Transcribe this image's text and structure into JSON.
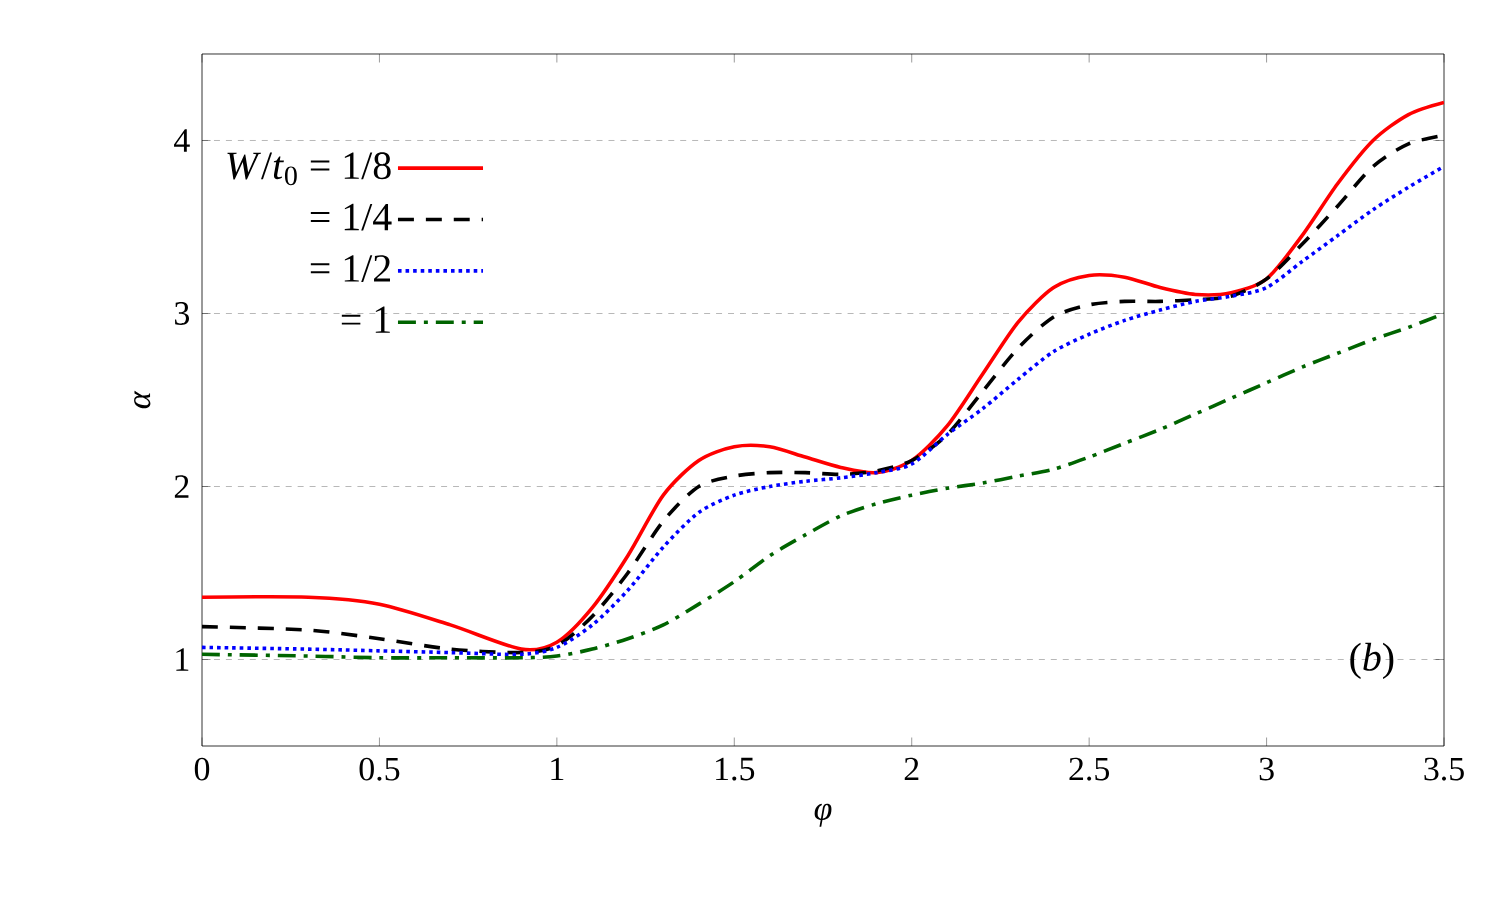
{
  "chart_data": {
    "type": "line",
    "xlabel": "*φ*",
    "ylabel": "*α*",
    "xlim": [
      0,
      3.5
    ],
    "ylim": [
      0.5,
      4.5
    ],
    "xticks": [
      0,
      0.5,
      1,
      1.5,
      2,
      2.5,
      3,
      3.5
    ],
    "yticks": [
      1,
      2,
      3,
      4
    ],
    "grid": "y",
    "legend": "top left",
    "annotations": [
      "(*b*)"
    ],
    "x": [
      0,
      0.3,
      0.5,
      0.7,
      0.9,
      1.0,
      1.1,
      1.2,
      1.3,
      1.4,
      1.5,
      1.6,
      1.7,
      1.8,
      1.9,
      2.0,
      2.1,
      2.2,
      2.3,
      2.4,
      2.5,
      2.6,
      2.7,
      2.8,
      2.9,
      3.0,
      3.1,
      3.2,
      3.3,
      3.4,
      3.5
    ],
    "series": [
      {
        "name": "*W*/*t*$_{0}$ = 1/8",
        "color": "#ff0000",
        "line_style": "solid",
        "values": [
          1.36,
          1.36,
          1.32,
          1.2,
          1.06,
          1.1,
          1.3,
          1.6,
          1.95,
          2.15,
          2.23,
          2.23,
          2.17,
          2.11,
          2.08,
          2.15,
          2.35,
          2.65,
          2.95,
          3.15,
          3.22,
          3.21,
          3.15,
          3.11,
          3.12,
          3.2,
          3.45,
          3.75,
          4.0,
          4.15,
          4.22
        ]
      },
      {
        "name": "= 1/4",
        "color": "#000000",
        "line_style": "dashed",
        "values": [
          1.19,
          1.17,
          1.12,
          1.06,
          1.04,
          1.08,
          1.25,
          1.5,
          1.8,
          2.0,
          2.06,
          2.08,
          2.08,
          2.07,
          2.09,
          2.15,
          2.3,
          2.55,
          2.8,
          2.98,
          3.05,
          3.07,
          3.07,
          3.08,
          3.1,
          3.2,
          3.4,
          3.62,
          3.85,
          3.98,
          4.03
        ]
      },
      {
        "name": "= 1/2",
        "color": "#0000ff",
        "line_style": "dotted",
        "values": [
          1.07,
          1.06,
          1.05,
          1.04,
          1.03,
          1.07,
          1.2,
          1.4,
          1.65,
          1.85,
          1.95,
          2.0,
          2.03,
          2.05,
          2.08,
          2.13,
          2.3,
          2.45,
          2.62,
          2.78,
          2.88,
          2.96,
          3.02,
          3.07,
          3.1,
          3.15,
          3.3,
          3.45,
          3.6,
          3.73,
          3.85
        ]
      },
      {
        "name": "= 1",
        "color": "#006400",
        "line_style": "dashdot",
        "values": [
          1.03,
          1.02,
          1.01,
          1.01,
          1.01,
          1.02,
          1.06,
          1.12,
          1.2,
          1.32,
          1.45,
          1.6,
          1.72,
          1.83,
          1.9,
          1.95,
          1.99,
          2.02,
          2.06,
          2.1,
          2.17,
          2.25,
          2.33,
          2.42,
          2.51,
          2.6,
          2.69,
          2.77,
          2.85,
          2.92,
          3.0
        ]
      }
    ]
  }
}
